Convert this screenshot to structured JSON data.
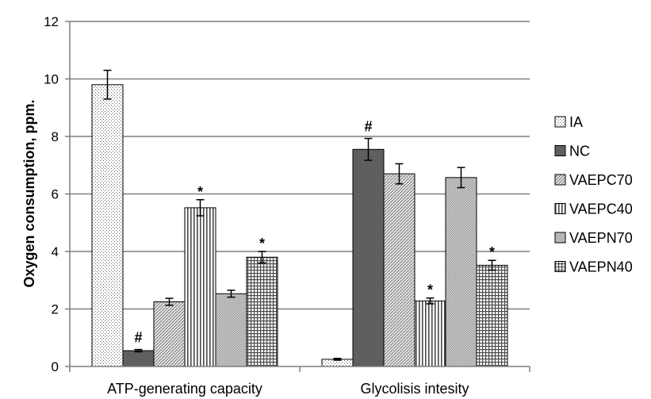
{
  "chart_data": {
    "type": "bar",
    "title": "",
    "xlabel": "",
    "ylabel": "Oxygen consumption, ppm.",
    "ylim": [
      0,
      12
    ],
    "yticks": [
      0,
      2,
      4,
      6,
      8,
      10,
      12
    ],
    "grid": true,
    "legend_position": "right",
    "categories": [
      "ATP-generating capacity",
      "Glycolisis intesity"
    ],
    "series": [
      {
        "name": "IA",
        "values": [
          9.8,
          0.25
        ],
        "errors": [
          0.5,
          0.03
        ],
        "annotations": [
          "",
          ""
        ],
        "pattern": "dots",
        "color": "#ffffff"
      },
      {
        "name": "NC",
        "values": [
          0.55,
          7.55
        ],
        "errors": [
          0.04,
          0.38
        ],
        "annotations": [
          "#",
          "#"
        ],
        "pattern": "solid",
        "color": "#5f5f5f"
      },
      {
        "name": "VAEPC70",
        "values": [
          2.25,
          6.7
        ],
        "errors": [
          0.12,
          0.35
        ],
        "annotations": [
          "",
          ""
        ],
        "pattern": "diagonal",
        "color": "#d0d0d0"
      },
      {
        "name": "VAEPC40",
        "values": [
          5.52,
          2.28
        ],
        "errors": [
          0.28,
          0.1
        ],
        "annotations": [
          "*",
          "*"
        ],
        "pattern": "vertical",
        "color": "#ffffff"
      },
      {
        "name": "VAEPN70",
        "values": [
          2.53,
          6.57
        ],
        "errors": [
          0.12,
          0.35
        ],
        "annotations": [
          "",
          ""
        ],
        "pattern": "diagonal2",
        "color": "#c8c8c8"
      },
      {
        "name": "VAEPN40",
        "values": [
          3.8,
          3.52
        ],
        "errors": [
          0.2,
          0.17
        ],
        "annotations": [
          "*",
          "*"
        ],
        "pattern": "grid",
        "color": "#ffffff"
      }
    ]
  },
  "colors": {
    "axis": "#7f7f7f",
    "gridline": "#7f7f7f",
    "bar_outline": "#000000"
  }
}
